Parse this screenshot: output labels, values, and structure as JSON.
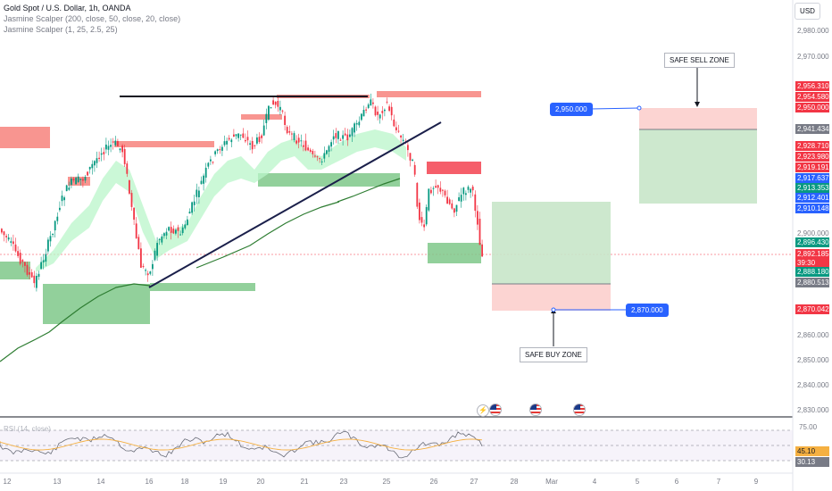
{
  "header": {
    "symbol_line": "Gold Spot / U.S. Dollar, 1h, OANDA",
    "indicator_1": "Jasmine Scalper (200, close, 50, close, 20, close)",
    "indicator_2": "Jasmine Scalper (1, 25, 2.5, 25)",
    "currency": "USD"
  },
  "price_axis": {
    "ticks": [
      "2,980.000",
      "2,970.000",
      "2,900.000",
      "2,860.000",
      "2,850.000",
      "2,840.000",
      "2,830.000"
    ]
  },
  "price_labels": [
    {
      "text": "2,956.310",
      "color": "#f23645"
    },
    {
      "text": "2,954.580",
      "color": "#f23645"
    },
    {
      "text": "2,950.000",
      "color": "#f23645"
    },
    {
      "text": "2,941.434",
      "color": "#787b86"
    },
    {
      "text": "2,928.710",
      "color": "#f23645"
    },
    {
      "text": "2,923.980",
      "color": "#f23645"
    },
    {
      "text": "2,919.191",
      "color": "#f23645"
    },
    {
      "text": "2,917.637",
      "color": "#2962ff"
    },
    {
      "text": "2,913.353",
      "color": "#089981"
    },
    {
      "text": "2,912.401",
      "color": "#2962ff"
    },
    {
      "text": "2,910.148",
      "color": "#2962ff"
    },
    {
      "text": "2,896.430",
      "color": "#089981"
    },
    {
      "text": "2,892.185",
      "color": "#f23645"
    },
    {
      "text": "39:30",
      "color": "#f23645"
    },
    {
      "text": "2,888.180",
      "color": "#089981"
    },
    {
      "text": "2,880.513",
      "color": "#787b86"
    },
    {
      "text": "2,870.042",
      "color": "#f23645"
    }
  ],
  "rsi": {
    "label": "RSI (14, close)",
    "ticks": [
      "75.00",
      "45.10",
      "30.13"
    ]
  },
  "time_axis": [
    "12",
    "13",
    "14",
    "16",
    "18",
    "19",
    "20",
    "21",
    "23",
    "25",
    "26",
    "27",
    "28",
    "Mar",
    "4",
    "5",
    "6",
    "7",
    "9"
  ],
  "annotations": {
    "sell_zone": "SAFE SELL ZONE",
    "buy_zone": "SAFE BUY ZONE",
    "sell_price": "2,950.000",
    "buy_price": "2,870.000"
  }
}
